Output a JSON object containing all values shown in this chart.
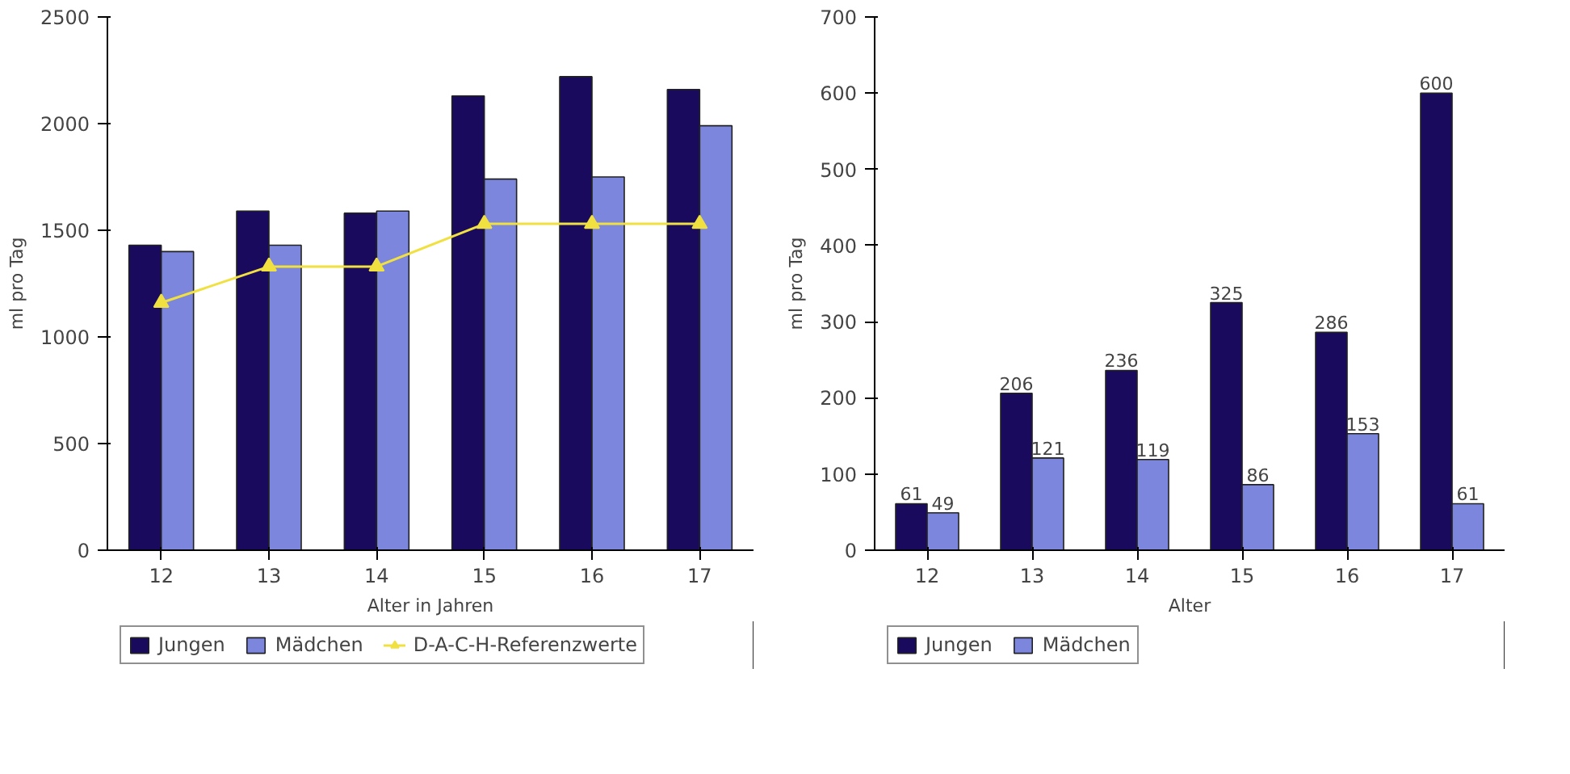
{
  "chart_data": [
    {
      "type": "bar",
      "xlabel": "Alter in Jahren",
      "ylabel": "ml pro Tag",
      "categories": [
        "12",
        "13",
        "14",
        "15",
        "16",
        "17"
      ],
      "series": [
        {
          "name": "Jungen",
          "color": "#1a0a5e",
          "values": [
            1430,
            1590,
            1580,
            2130,
            2220,
            2160
          ]
        },
        {
          "name": "Mädchen",
          "color": "#7b86dc",
          "values": [
            1400,
            1430,
            1590,
            1740,
            1750,
            1990
          ]
        },
        {
          "name": "D-A-C-H-Referenzwerte",
          "type": "line",
          "color": "#f0e040",
          "marker": "triangle",
          "values": [
            1160,
            1330,
            1330,
            1530,
            1530,
            1530
          ]
        }
      ],
      "ylim": [
        0,
        2500
      ],
      "yticks": [
        0,
        500,
        1000,
        1500,
        2000,
        2500
      ],
      "grid": false,
      "legend": "bottom"
    },
    {
      "type": "bar",
      "xlabel": "Alter",
      "ylabel": "ml pro Tag",
      "categories": [
        "12",
        "13",
        "14",
        "15",
        "16",
        "17"
      ],
      "series": [
        {
          "name": "Jungen",
          "color": "#1a0a5e",
          "values": [
            61,
            206,
            236,
            325,
            286,
            600
          ]
        },
        {
          "name": "Mädchen",
          "color": "#7b86dc",
          "values": [
            49,
            121,
            119,
            86,
            153,
            61
          ]
        }
      ],
      "ylim": [
        0,
        700
      ],
      "yticks": [
        0,
        100,
        200,
        300,
        400,
        500,
        600,
        700
      ],
      "grid": false,
      "legend": "bottom",
      "data_labels": true
    }
  ]
}
